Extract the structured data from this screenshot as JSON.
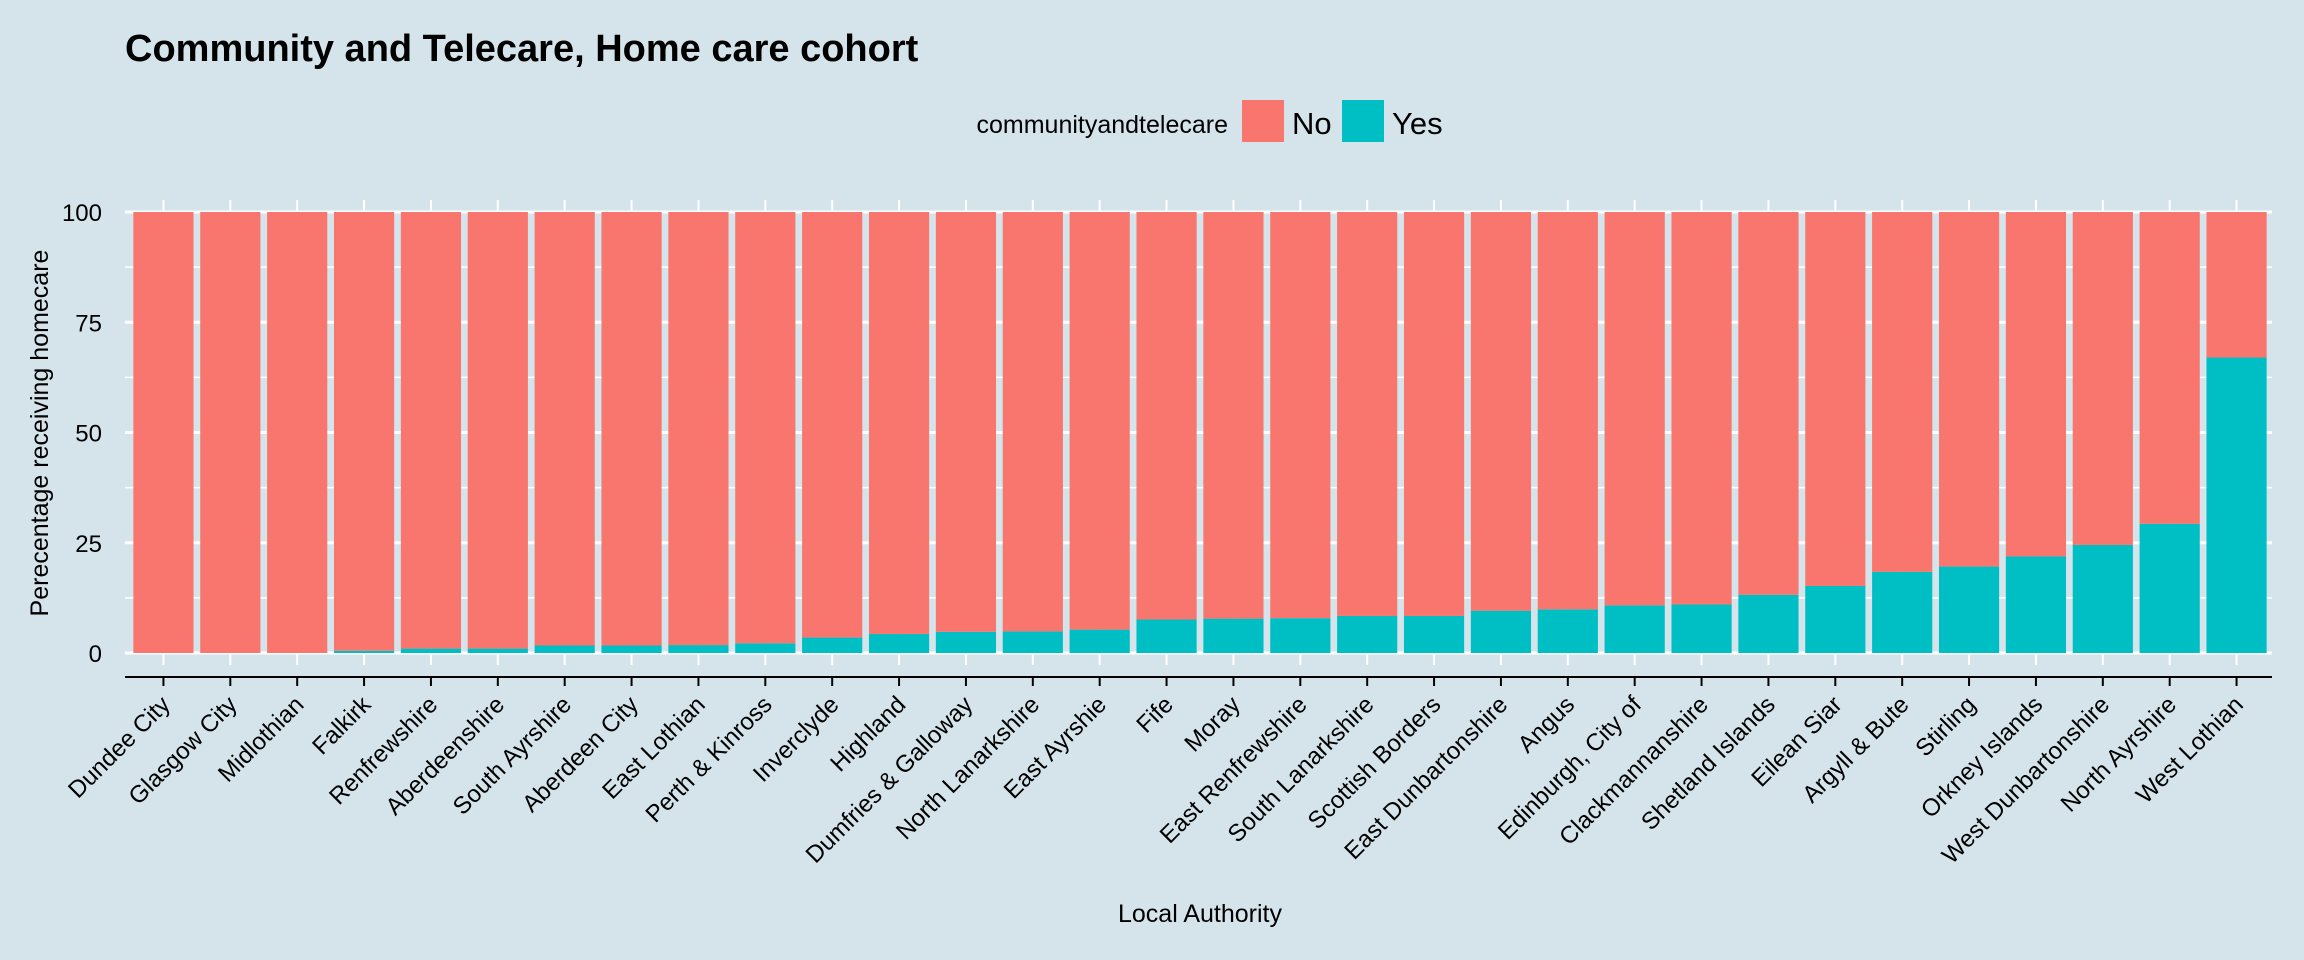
{
  "chart_data": {
    "type": "bar",
    "stacked": true,
    "title": "Community and Telecare, Home care cohort",
    "xlabel": "Local Authority",
    "ylabel": "Perecentage receiving homecare",
    "ylim": [
      0,
      100
    ],
    "yticks": [
      "0",
      "25",
      "50",
      "75",
      "100"
    ],
    "grid": true,
    "legend": {
      "title": "communityandtelecare",
      "position": "top",
      "entries": [
        "No",
        "Yes"
      ]
    },
    "colors": {
      "No": "#f8766d",
      "Yes": "#00bfc4"
    },
    "categories": [
      "Dundee City",
      "Glasgow City",
      "Midlothian",
      "Falkirk",
      "Renfrewshire",
      "Aberdeenshire",
      "South Ayrshire",
      "Aberdeen City",
      "East Lothian",
      "Perth & Kinross",
      "Inverclyde",
      "Highland",
      "Dumfries & Galloway",
      "North Lanarkshire",
      "East Ayrshie",
      "Fife",
      "Moray",
      "East Renfrewshire",
      "South Lanarkshire",
      "Scottish Borders",
      "East Dunbartonshire",
      "Angus",
      "Edinburgh, City of",
      "Clackmannanshire",
      "Shetland Islands",
      "Eilean Siar",
      "Argyll & Bute",
      "Stirling",
      "Orkney Islands",
      "West Dunbartonshire",
      "North Ayrshire",
      "West Lothian"
    ],
    "series": [
      {
        "name": "No",
        "values": [
          100,
          100,
          100,
          99.5,
          99,
          99,
          98.3,
          98.3,
          98.2,
          97.8,
          96.5,
          95.7,
          95.2,
          95.1,
          94.7,
          92.4,
          92.2,
          92.1,
          91.6,
          91.6,
          90.4,
          90.1,
          89.2,
          89.0,
          86.8,
          84.8,
          81.6,
          80.4,
          78.1,
          75.5,
          70.7,
          33.0
        ]
      },
      {
        "name": "Yes",
        "values": [
          0,
          0,
          0,
          0.5,
          1,
          1,
          1.7,
          1.7,
          1.8,
          2.2,
          3.5,
          4.3,
          4.8,
          4.9,
          5.3,
          7.6,
          7.8,
          7.9,
          8.4,
          8.4,
          9.6,
          9.9,
          10.8,
          11.0,
          13.2,
          15.2,
          18.4,
          19.6,
          21.9,
          24.5,
          29.3,
          67.0
        ]
      }
    ]
  }
}
